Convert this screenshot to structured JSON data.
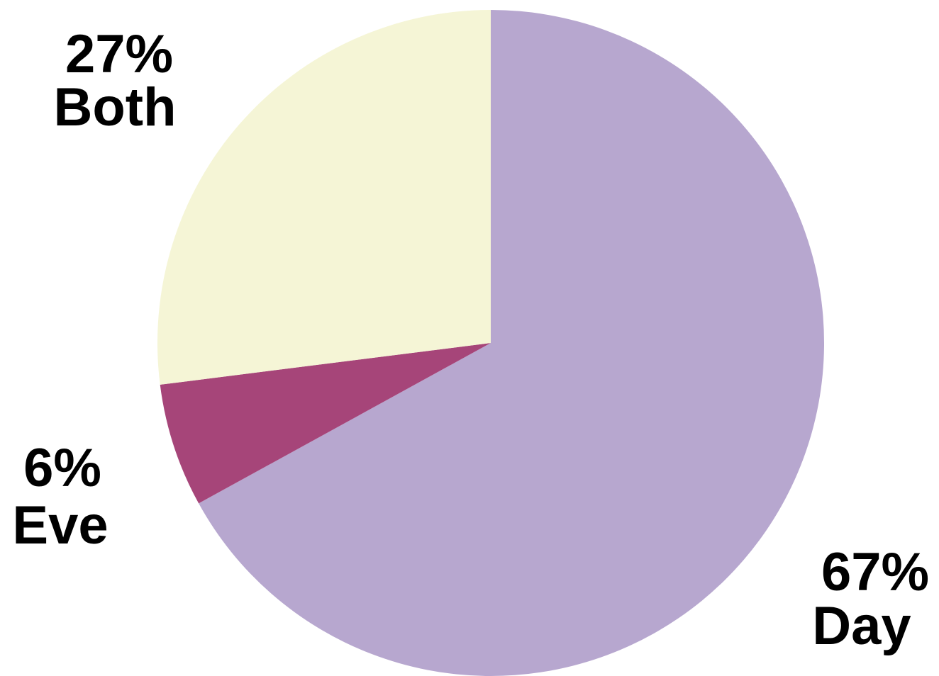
{
  "chart_data": {
    "type": "pie",
    "title": "",
    "slices": [
      {
        "name": "Day",
        "label": "Day",
        "percent_label": "67%",
        "value": 67,
        "color": "#b7a7cf"
      },
      {
        "name": "Eve",
        "label": "Eve",
        "percent_label": "6%",
        "value": 6,
        "color": "#a64579"
      },
      {
        "name": "Both",
        "label": "Both",
        "percent_label": "27%",
        "value": 27,
        "color": "#f5f5d6"
      }
    ],
    "start_angle_deg": 0,
    "direction": "clockwise",
    "legend": "none"
  }
}
